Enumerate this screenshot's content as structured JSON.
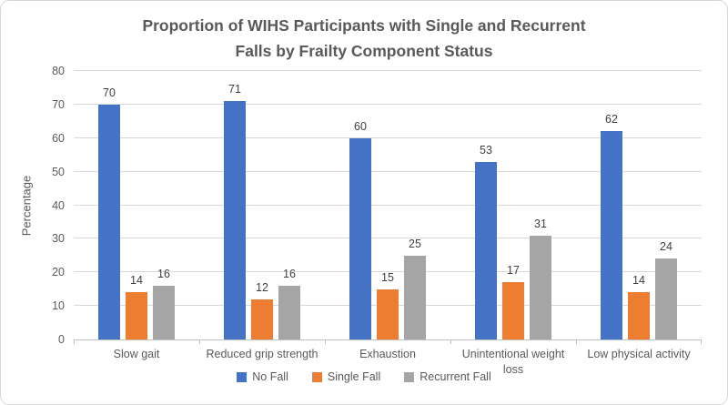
{
  "frame": {
    "background": "#ffffff",
    "border_color": "#d9d9d9"
  },
  "title_lines": [
    "Proportion of WIHS Participants with  Single and Recurrent",
    "Falls by Frailty Component Status"
  ],
  "chart_data": {
    "type": "bar",
    "title": "Proportion of WIHS Participants with  Single and Recurrent Falls by Frailty Component Status",
    "xlabel": "",
    "ylabel": "Percentage",
    "ylim": [
      0,
      80
    ],
    "yticks": [
      0,
      10,
      20,
      30,
      40,
      50,
      60,
      70,
      80
    ],
    "grid": true,
    "legend_position": "bottom",
    "data_labels": true,
    "categories": [
      "Slow gait",
      "Reduced grip strength",
      "Exhaustion",
      "Unintentional weight loss",
      "Low physical activity"
    ],
    "series": [
      {
        "name": "No Fall",
        "color": "#4472C4",
        "values": [
          70,
          71,
          60,
          53,
          62
        ]
      },
      {
        "name": "Single Fall",
        "color": "#ED7D31",
        "values": [
          14,
          12,
          15,
          17,
          14
        ]
      },
      {
        "name": "Recurrent Fall",
        "color": "#A5A5A5",
        "values": [
          16,
          16,
          25,
          31,
          24
        ]
      }
    ],
    "colors": {
      "title_text": "#595959",
      "axis_text": "#595959",
      "data_label_text": "#404040",
      "gridline": "#d9d9d9",
      "axis_line": "#bfbfbf"
    }
  }
}
